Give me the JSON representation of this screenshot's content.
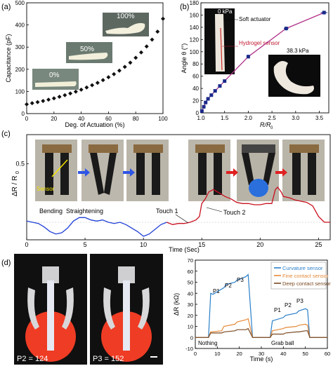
{
  "panel_labels": {
    "a": "(a)",
    "b": "(b)",
    "c": "(c)",
    "d": "(d)"
  },
  "chart_data": [
    {
      "panel": "a",
      "type": "scatter",
      "xlabel": "Deg. of Actuation (%)",
      "ylabel": "Capacitance (pF)",
      "xlim": [
        0,
        100
      ],
      "ylim": [
        0,
        500
      ],
      "xticks": [
        0,
        20,
        40,
        60,
        80,
        100
      ],
      "yticks": [
        0,
        100,
        200,
        300,
        400,
        500
      ],
      "inset_labels": [
        "100%",
        "50%",
        "0%"
      ],
      "x": [
        0,
        4,
        8,
        12,
        16,
        20,
        24,
        28,
        32,
        36,
        40,
        44,
        48,
        52,
        56,
        60,
        64,
        68,
        72,
        76,
        80,
        84,
        88,
        92,
        96,
        100
      ],
      "y": [
        42,
        47,
        52,
        57,
        63,
        69,
        76,
        83,
        91,
        99,
        108,
        118,
        128,
        139,
        151,
        164,
        178,
        194,
        211,
        230,
        252,
        276,
        303,
        334,
        370,
        428
      ]
    },
    {
      "panel": "b",
      "type": "line",
      "xlabel": "R/R",
      "xlabel_sub": "0",
      "ylabel": "Angle θ (°)",
      "xlim": [
        1.0,
        3.7
      ],
      "ylim": [
        0,
        180
      ],
      "xticks": [
        1.0,
        1.5,
        2.0,
        2.5,
        3.0,
        3.5
      ],
      "yticks": [
        0,
        20,
        40,
        60,
        80,
        100,
        120,
        140,
        160,
        180
      ],
      "annotations": [
        "0 kPa",
        "Soft actuator",
        "Hydrogel sensor",
        "38.3 kPa"
      ],
      "x": [
        1.02,
        1.06,
        1.1,
        1.15,
        1.22,
        1.3,
        1.4,
        1.5,
        2.0,
        2.8,
        3.6
      ],
      "y": [
        3,
        10,
        17,
        23,
        29,
        36,
        44,
        52,
        92,
        138,
        164
      ],
      "xerr": [
        0.02,
        0.02,
        0.02,
        0.02,
        0.02,
        0.02,
        0.02,
        0.02,
        0.03,
        0.05,
        0.07
      ],
      "yerr": [
        2,
        2,
        2,
        2,
        2,
        2,
        2,
        2,
        3,
        3,
        3
      ]
    },
    {
      "panel": "c",
      "type": "line",
      "xlabel": "Time (Sec)",
      "ylabel": "ΔR / R",
      "ylabel_sub": "0",
      "xlim": [
        0,
        26
      ],
      "ylim": [
        -0.15,
        0.75
      ],
      "xticks": [
        0,
        5,
        10,
        15,
        20,
        25
      ],
      "yticks": [
        0.5
      ],
      "annotations": [
        "Sensor",
        "Bending",
        "Straightening",
        "Touch 1",
        "Touch 2"
      ],
      "series": [
        {
          "color": "#1f3fd6",
          "x": [
            0,
            0.5,
            1,
            1.5,
            2,
            2.5,
            3,
            3.5,
            4,
            4.5,
            5,
            5.5,
            6,
            6.5,
            7,
            7.5,
            8,
            8.5,
            9,
            9.5,
            10,
            10.5,
            11,
            11.5,
            12
          ],
          "y": [
            0.01,
            0.0,
            -0.01,
            -0.04,
            -0.08,
            -0.1,
            -0.09,
            -0.05,
            0.01,
            0.04,
            0.04,
            0.02,
            0.01,
            0.02,
            0.0,
            -0.01,
            0.0,
            -0.02,
            -0.05,
            -0.08,
            -0.12,
            -0.1,
            -0.06,
            -0.02,
            0.0
          ]
        },
        {
          "color": "#c8101e",
          "x": [
            12,
            12.5,
            13,
            13.5,
            14,
            14.5,
            14.8,
            15,
            15.3,
            15.6,
            16,
            16.5,
            17,
            17.5,
            18,
            18.5,
            19,
            19.5,
            20,
            20.5,
            21,
            21.3,
            21.5,
            21.8,
            22,
            22.5,
            23,
            23.5,
            24,
            24.5,
            25,
            25.5,
            26
          ],
          "y": [
            0.0,
            -0.02,
            -0.01,
            -0.01,
            0.0,
            0.02,
            0.05,
            0.16,
            0.2,
            0.26,
            0.28,
            0.25,
            0.22,
            0.2,
            0.17,
            0.16,
            0.16,
            0.15,
            0.15,
            0.16,
            0.16,
            0.28,
            0.3,
            0.26,
            0.22,
            0.21,
            0.19,
            0.18,
            0.17,
            0.14,
            0.05,
            0.0,
            0.0
          ]
        }
      ]
    },
    {
      "panel": "d",
      "type": "line",
      "xlabel": "Time (s)",
      "ylabel": "ΔR (kΩ)",
      "xlim": [
        0,
        60
      ],
      "ylim": [
        -10,
        70
      ],
      "xticks": [
        0,
        10,
        20,
        30,
        40,
        50,
        60
      ],
      "yticks": [
        -10,
        0,
        10,
        20,
        30,
        40,
        50,
        60,
        70
      ],
      "legend_position": "top-right",
      "annotations": [
        "P1",
        "P2",
        "P3",
        "P1",
        "P2",
        "P3",
        "Nothing",
        "Grab ball"
      ],
      "photo_labels": [
        "P2 = 124",
        "P3 = 152"
      ],
      "series": [
        {
          "name": "Curvature sensor",
          "color": "#2a7fc9",
          "x": [
            0,
            6,
            7,
            8,
            13,
            14,
            18,
            19,
            23,
            24,
            26,
            33,
            34,
            35,
            40,
            41,
            46,
            47,
            50,
            51,
            52,
            60
          ],
          "y": [
            0,
            0,
            40,
            39,
            45,
            48,
            50,
            52,
            55,
            57,
            0,
            0,
            0,
            15,
            18,
            20,
            22,
            24,
            26,
            25,
            0,
            0
          ]
        },
        {
          "name": "Fine contact sensor",
          "color": "#e58a3a",
          "x": [
            0,
            6,
            7,
            12,
            13,
            18,
            19,
            23,
            24,
            26,
            33,
            34,
            35,
            40,
            41,
            46,
            47,
            50,
            51,
            52,
            60
          ],
          "y": [
            0,
            0,
            5,
            6,
            10,
            12,
            14,
            16,
            17,
            0,
            0,
            0,
            6,
            8,
            9,
            10,
            11,
            12,
            11,
            0,
            0
          ]
        },
        {
          "name": "Deep contact sensor",
          "color": "#7a4a22",
          "x": [
            0,
            6,
            7,
            12,
            13,
            18,
            19,
            23,
            24,
            26,
            33,
            34,
            35,
            40,
            41,
            46,
            47,
            50,
            51,
            52,
            60
          ],
          "y": [
            0,
            0,
            4,
            4,
            5,
            6,
            7,
            7,
            8,
            0,
            0,
            0,
            3,
            3,
            4,
            5,
            5,
            6,
            6,
            0,
            0
          ]
        }
      ]
    }
  ]
}
